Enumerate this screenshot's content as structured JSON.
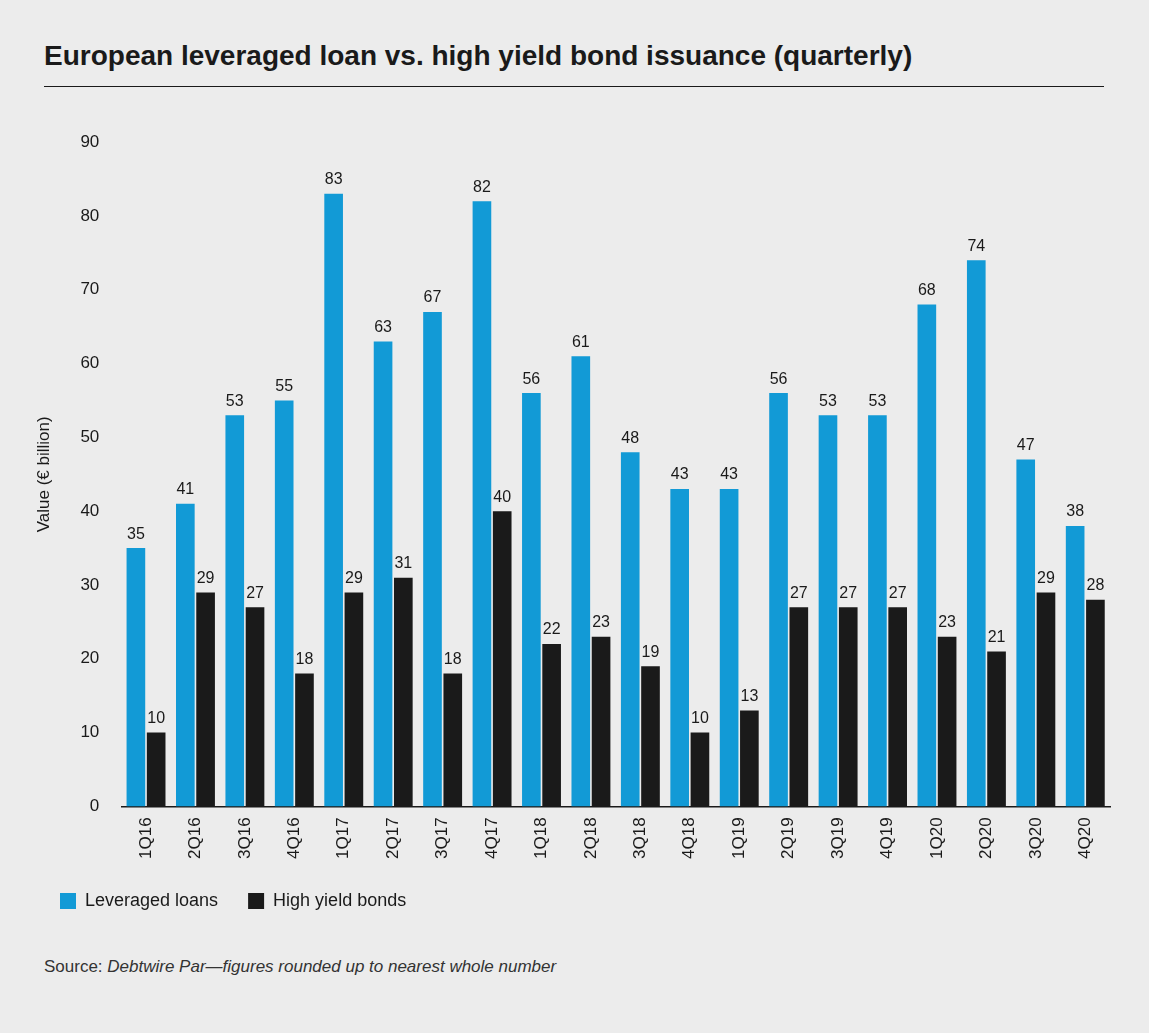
{
  "chart_data": {
    "type": "bar",
    "title": "European leveraged loan vs. high yield bond issuance (quarterly)",
    "y_label": "Value (€ billion)",
    "source": "Source: Debtwire Par—figures rounded up to nearest whole number",
    "categories": [
      "1Q16",
      "2Q16",
      "3Q16",
      "4Q16",
      "1Q17",
      "2Q17",
      "3Q17",
      "4Q17",
      "1Q18",
      "2Q18",
      "3Q18",
      "4Q18",
      "1Q19",
      "2Q19",
      "3Q19",
      "4Q19",
      "1Q20",
      "2Q20",
      "3Q20",
      "4Q20"
    ],
    "series": [
      {
        "name": "Leveraged loans",
        "color": "#129ad6",
        "values": [
          35,
          41,
          53,
          55,
          83,
          63,
          67,
          82,
          56,
          61,
          48,
          43,
          43,
          56,
          53,
          53,
          68,
          74,
          47,
          38
        ]
      },
      {
        "name": "High yield bonds",
        "color": "#1a1a1a",
        "values": [
          10,
          29,
          27,
          18,
          29,
          31,
          18,
          40,
          22,
          23,
          19,
          10,
          13,
          27,
          27,
          27,
          23,
          21,
          29,
          28
        ]
      }
    ],
    "ylim": [
      0,
      90
    ],
    "yticks": [
      0,
      10,
      20,
      30,
      40,
      50,
      60,
      70,
      80,
      90
    ],
    "grid": false,
    "legend": "bottom-left",
    "data_labels": true
  }
}
